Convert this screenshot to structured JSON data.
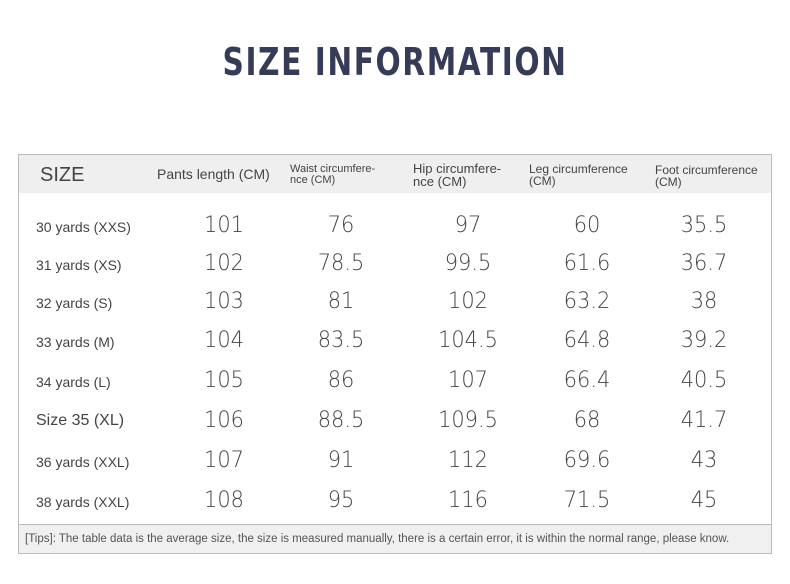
{
  "title": "SIZE INFORMATION",
  "headers": [
    "SIZE",
    "Pants length (CM)",
    "Waist circumfere-nce (CM)",
    "Hip circumfere-nce (CM)",
    "Leg circumference (CM)",
    "Foot circumference (CM)"
  ],
  "rows": [
    [
      "30 yards (XXS)",
      "101",
      "76",
      "97",
      "60",
      "35.5"
    ],
    [
      "31 yards (XS)",
      "102",
      "78.5",
      "99.5",
      "61.6",
      "36.7"
    ],
    [
      "32 yards (S)",
      "103",
      "81",
      "102",
      "63.2",
      "38"
    ],
    [
      "33 yards (M)",
      "104",
      "83.5",
      "104.5",
      "64.8",
      "39.2"
    ],
    [
      "34 yards (L)",
      "105",
      "86",
      "107",
      "66.4",
      "40.5"
    ],
    [
      "Size 35 (XL)",
      "106",
      "88.5",
      "109.5",
      "68",
      "41.7"
    ],
    [
      "36 yards (XXL)",
      "107",
      "91",
      "112",
      "69.6",
      "43"
    ],
    [
      "38 yards (XXL)",
      "108",
      "95",
      "116",
      "71.5",
      "45"
    ]
  ],
  "tips": "[Tips]: The table data is the average size, the size is measured manually, there is a certain error, it is within the normal range, please know."
}
